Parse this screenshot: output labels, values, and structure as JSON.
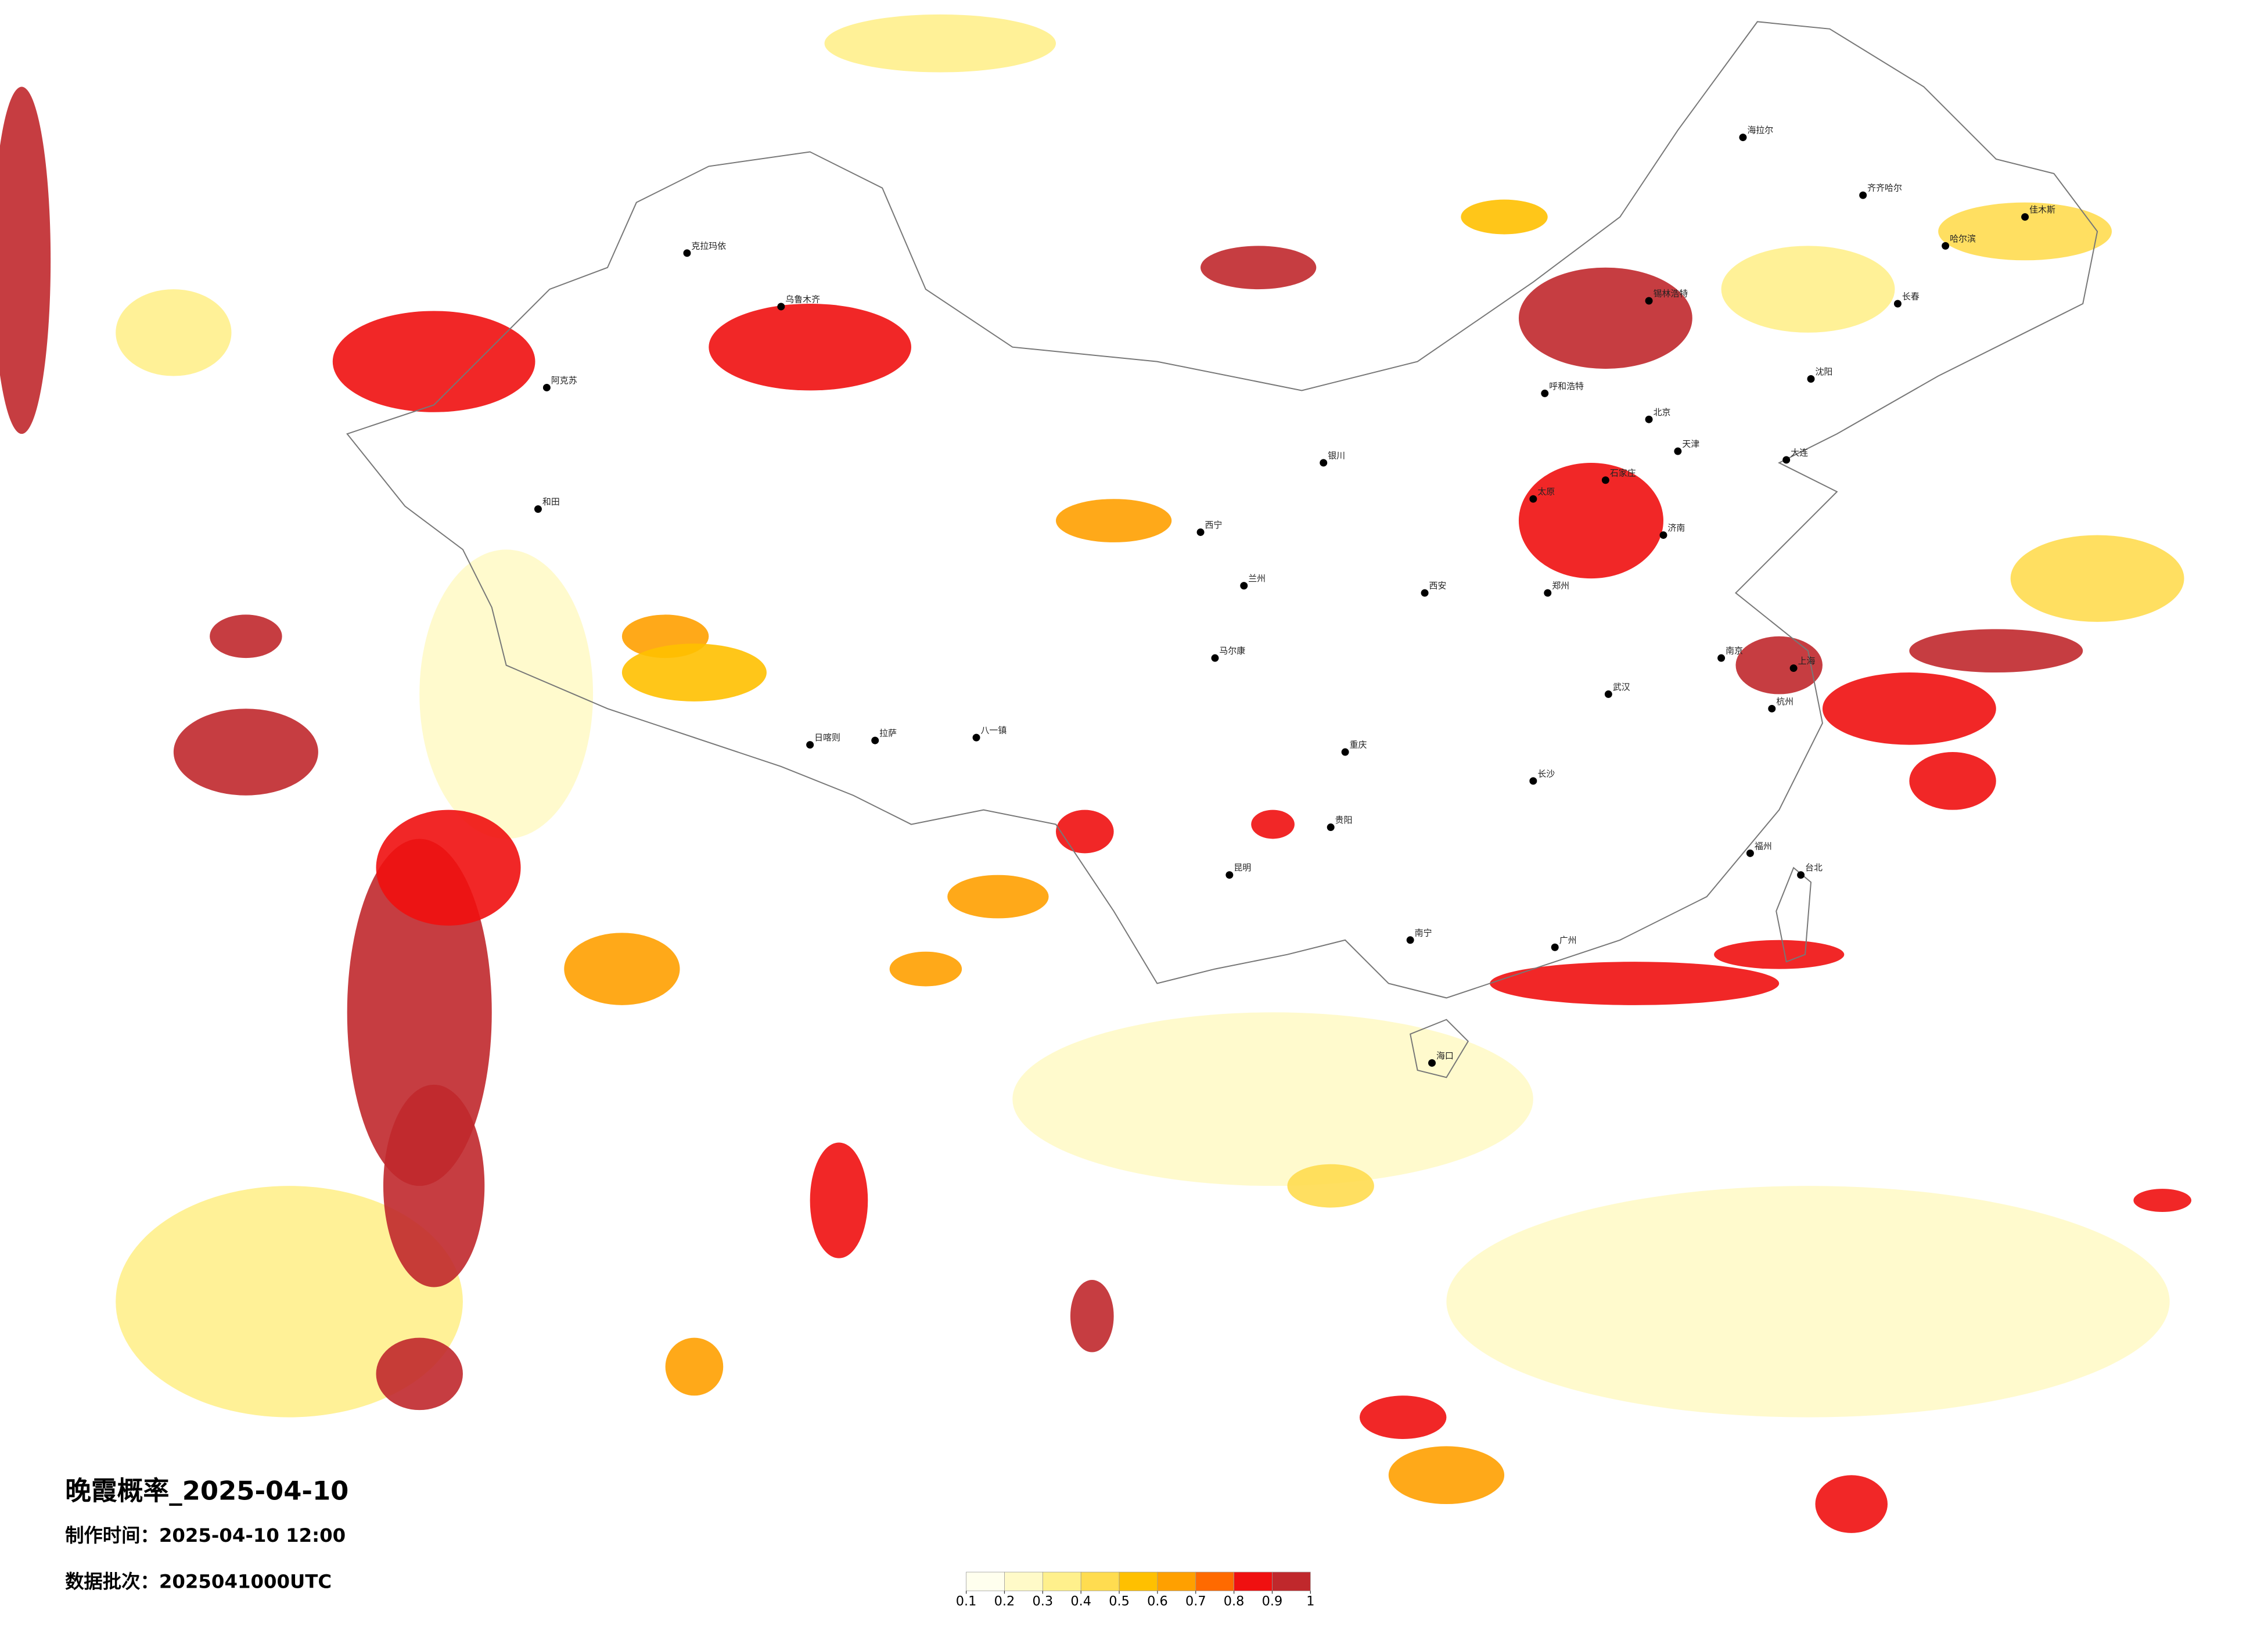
{
  "header": {
    "title": "晚霞概率_2025-04-10",
    "made_time": "制作时间：2025-04-10 12:00",
    "batch": "数据批次：2025041000UTC"
  },
  "colorbar": {
    "colors": [
      "#ffffee",
      "#fffac8",
      "#fff08c",
      "#ffdc50",
      "#ffc000",
      "#ffa000",
      "#ff6a00",
      "#f01010",
      "#c0282c"
    ],
    "ticks": [
      0.1,
      0.2,
      0.3,
      0.4,
      0.5,
      0.6,
      0.7,
      0.8,
      0.9,
      1
    ]
  },
  "cities": [
    "北京",
    "天津",
    "上海",
    "广州",
    "海口",
    "哈尔滨",
    "长春",
    "沈阳",
    "呼和浩特",
    "乌鲁木齐",
    "克拉玛依",
    "阿克苏",
    "和田",
    "拉萨",
    "日喀则",
    "八一镇",
    "西宁",
    "兰州",
    "银川",
    "西安",
    "郑州",
    "武汉",
    "长沙",
    "重庆",
    "贵阳",
    "昆明",
    "南宁",
    "福州",
    "台北",
    "杭州",
    "南京",
    "济南",
    "石家庄",
    "太原",
    "锡林浩特",
    "海拉尔",
    "齐齐哈尔",
    "佳木斯",
    "马尔康",
    "大连"
  ]
}
